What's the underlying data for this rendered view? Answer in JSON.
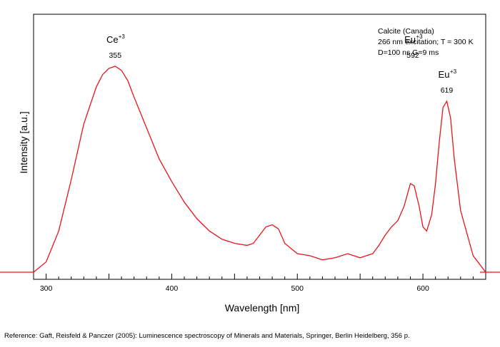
{
  "chart_data": {
    "type": "line",
    "xlabel": "Wavelength [nm]",
    "ylabel": "Intensity [a.u.]",
    "xlim": [
      290,
      650
    ],
    "ylim": [
      0,
      1.05
    ],
    "xticks": [
      300,
      400,
      500,
      600
    ],
    "grid": false,
    "info_box": {
      "lines": [
        "Calcite (Canada)",
        "266 nm excitation; T = 300 K",
        "D=100 ns G=9 ms"
      ],
      "placement": "top-right"
    },
    "peak_annotations": [
      {
        "ion": "Ce",
        "charge": "+3",
        "wavelength": "355",
        "x": 355
      },
      {
        "ion": "Eu",
        "charge": "+3",
        "wavelength": "592",
        "x": 592
      },
      {
        "ion": "Eu",
        "charge": "+3",
        "wavelength": "619",
        "x": 619
      }
    ],
    "series": [
      {
        "color": "#e8141c",
        "x": [
          290,
          300,
          310,
          320,
          330,
          340,
          345,
          350,
          355,
          360,
          365,
          370,
          380,
          390,
          400,
          410,
          420,
          430,
          440,
          450,
          460,
          465,
          470,
          475,
          480,
          485,
          490,
          500,
          510,
          520,
          530,
          540,
          545,
          550,
          560,
          565,
          570,
          575,
          580,
          585,
          590,
          593,
          597,
          600,
          603,
          607,
          610,
          613,
          616,
          619,
          622,
          625,
          630,
          640,
          650
        ],
        "y": [
          0.0,
          0.05,
          0.2,
          0.45,
          0.72,
          0.9,
          0.96,
          0.99,
          1.0,
          0.98,
          0.93,
          0.85,
          0.7,
          0.55,
          0.44,
          0.34,
          0.26,
          0.2,
          0.16,
          0.14,
          0.13,
          0.14,
          0.18,
          0.22,
          0.23,
          0.21,
          0.14,
          0.09,
          0.08,
          0.06,
          0.07,
          0.09,
          0.08,
          0.07,
          0.09,
          0.13,
          0.18,
          0.22,
          0.25,
          0.32,
          0.43,
          0.42,
          0.32,
          0.22,
          0.2,
          0.28,
          0.43,
          0.63,
          0.8,
          0.83,
          0.75,
          0.55,
          0.3,
          0.08,
          0.0
        ]
      }
    ]
  },
  "reference": "Reference: Gaft, Reisfeld & Panczer (2005): Luminescence spectroscopy of Minerals and Materials, Springer, Berlin Heidelberg, 356 p."
}
